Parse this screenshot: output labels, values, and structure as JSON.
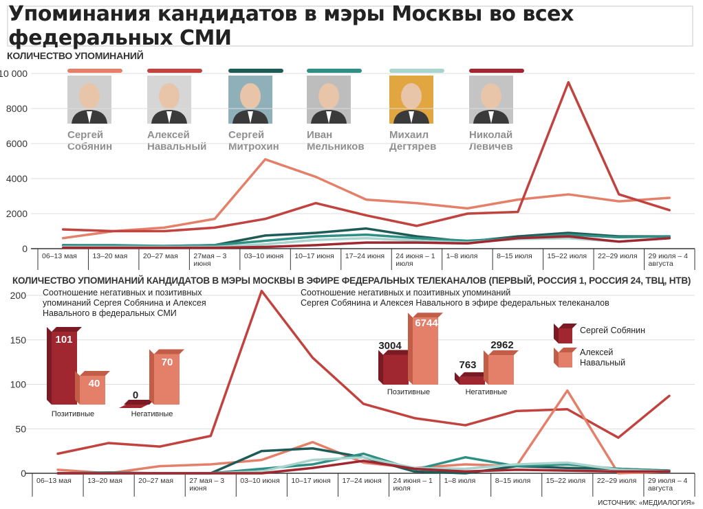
{
  "title": "Упоминания кандидатов в мэры Москвы во всех федеральных СМИ",
  "top_section_label": "КОЛИЧЕСТВО УПОМИНАНИЙ",
  "bottom_section_label": "КОЛИЧЕСТВО УПОМИНАНИЙ КАНДИДАТОВ В МЭРЫ МОСКВЫ В ЭФИРЕ ФЕДЕРАЛЬНЫХ ТЕЛЕКАНАЛОВ (ПЕРВЫЙ, РОССИЯ 1, РОССИЯ 24, ТВЦ, НТВ)",
  "candidates": [
    {
      "first": "Сергей",
      "last": "Собянин",
      "color": "#e4806a",
      "photo_bg": "#cfcfcf"
    },
    {
      "first": "Алексей",
      "last": "Навальный",
      "color": "#c0433f",
      "photo_bg": "#d6d6d6"
    },
    {
      "first": "Сергей",
      "last": "Митрохин",
      "color": "#1e5b57",
      "photo_bg": "#8fb0b8"
    },
    {
      "first": "Иван",
      "last": "Мельников",
      "color": "#2f8f84",
      "photo_bg": "#bdbdbd"
    },
    {
      "first": "Михаил",
      "last": "Дегтярев",
      "color": "#a9d3cd",
      "photo_bg": "#e1a640"
    },
    {
      "first": "Николай",
      "last": "Левичев",
      "color": "#a0262f",
      "photo_bg": "#c4c4c4"
    }
  ],
  "source": "ИСТОЧНИК: «МЕДИАЛОГИЯ»",
  "chart_data": [
    {
      "type": "line",
      "title": "КОЛИЧЕСТВО УПОМИНАНИЙ",
      "ylim": [
        0,
        10000
      ],
      "yticks": [
        0,
        2000,
        4000,
        6000,
        8000,
        10000
      ],
      "ytick_labels": [
        "0",
        "2000",
        "4000",
        "6000",
        "8000",
        "10 000"
      ],
      "categories": [
        "06–13 мая",
        "13–20 мая",
        "20–27 мая",
        "27мая – 3 июня",
        "03–10 июня",
        "10–17 июня",
        "17–24 июня",
        "24 июня – 1 июля",
        "1–8 июля",
        "8–15 июля",
        "15–22 июля",
        "22–29 июля",
        "29 июля – 4 августа"
      ],
      "category_lines": [
        [
          "06–13 мая"
        ],
        [
          "13–20 мая"
        ],
        [
          "20–27 мая"
        ],
        [
          "27мая – 3",
          "июня"
        ],
        [
          "03–10 июня"
        ],
        [
          "10–17 июня"
        ],
        [
          "17–24 июня"
        ],
        [
          "24 июня – 1",
          "июля"
        ],
        [
          "1–8 июля"
        ],
        [
          "8–15 июля"
        ],
        [
          "15–22 июля"
        ],
        [
          "22–29 июля"
        ],
        [
          "29 июля – 4",
          "августа"
        ]
      ],
      "series": [
        {
          "name": "Сергей Собянин",
          "color": "#e4806a",
          "values": [
            600,
            1000,
            1200,
            1700,
            5100,
            4100,
            2800,
            2600,
            2300,
            2800,
            3100,
            2700,
            2900
          ]
        },
        {
          "name": "Алексей Навальный",
          "color": "#c0433f",
          "values": [
            1100,
            1000,
            1000,
            1200,
            1700,
            2600,
            1900,
            1300,
            2000,
            2100,
            9500,
            3100,
            2200
          ]
        },
        {
          "name": "Сергей Митрохин",
          "color": "#1e5b57",
          "values": [
            200,
            150,
            150,
            200,
            750,
            900,
            1150,
            700,
            400,
            700,
            900,
            700,
            700
          ]
        },
        {
          "name": "Иван Мельников",
          "color": "#2f8f84",
          "values": [
            200,
            200,
            150,
            200,
            450,
            700,
            800,
            600,
            450,
            600,
            800,
            650,
            700
          ]
        },
        {
          "name": "Михаил Дегтярев",
          "color": "#a9d3cd",
          "values": [
            100,
            100,
            100,
            100,
            250,
            500,
            600,
            450,
            350,
            550,
            600,
            400,
            600
          ]
        },
        {
          "name": "Николай Левичев",
          "color": "#a0262f",
          "values": [
            50,
            50,
            50,
            50,
            100,
            200,
            350,
            350,
            300,
            600,
            700,
            400,
            600
          ]
        }
      ]
    },
    {
      "type": "line",
      "title": "КОЛИЧЕСТВО УПОМИНАНИЙ КАНДИДАТОВ В МЭРЫ МОСКВЫ В ЭФИРЕ ФЕДЕРАЛЬНЫХ ТЕЛЕКАНАЛОВ (ПЕРВЫЙ, РОССИЯ 1, РОССИЯ 24, ТВЦ, НТВ)",
      "ylim": [
        0,
        200
      ],
      "yticks": [
        0,
        50,
        100,
        150,
        200
      ],
      "ytick_labels": [
        "0",
        "50",
        "100",
        "150",
        "200"
      ],
      "categories": [
        "06–13 мая",
        "13–20 мая",
        "20–27 мая",
        "27 мая – 3 июня",
        "03–10 июня",
        "10–17 июня",
        "17–24 июня",
        "24 июня – 1 июля",
        "1–8 июля",
        "8–15 июля",
        "15–22 июля",
        "22–29 июля",
        "29 июля – 4 августа"
      ],
      "category_lines": [
        [
          "06–13 мая"
        ],
        [
          "13–20 мая"
        ],
        [
          "20–27 мая"
        ],
        [
          "27 мая – 3",
          "июня"
        ],
        [
          "03–10 июня"
        ],
        [
          "10–17 июня"
        ],
        [
          "17–24 июня"
        ],
        [
          "24 июня – 1",
          "июля"
        ],
        [
          "1–8 июля"
        ],
        [
          "8–15 июля"
        ],
        [
          "15–22 июля"
        ],
        [
          "22–29 июля"
        ],
        [
          "29 июля – 4",
          "августа"
        ]
      ],
      "series": [
        {
          "name": "Сергей Собянин",
          "color": "#c0433f",
          "values": [
            22,
            34,
            30,
            42,
            205,
            130,
            78,
            62,
            54,
            70,
            72,
            40,
            87
          ]
        },
        {
          "name": "Алексей Навальный",
          "color": "#e4806a",
          "values": [
            4,
            0,
            8,
            10,
            15,
            35,
            12,
            6,
            10,
            8,
            93,
            0,
            2
          ]
        },
        {
          "name": "Сергей Митрохин",
          "color": "#1e5b57",
          "values": [
            0,
            0,
            0,
            0,
            25,
            28,
            18,
            2,
            0,
            8,
            6,
            5,
            3
          ]
        },
        {
          "name": "Иван Мельников",
          "color": "#2f8f84",
          "values": [
            0,
            1,
            0,
            0,
            5,
            10,
            22,
            4,
            18,
            8,
            10,
            5,
            3
          ]
        },
        {
          "name": "Михаил Дегтярев",
          "color": "#a9d3cd",
          "values": [
            0,
            0,
            0,
            0,
            2,
            15,
            18,
            6,
            5,
            10,
            12,
            4,
            2
          ]
        },
        {
          "name": "Николай Левичев",
          "color": "#a0262f",
          "values": [
            0,
            0,
            0,
            0,
            0,
            6,
            14,
            5,
            2,
            4,
            3,
            2,
            2
          ]
        }
      ]
    },
    {
      "type": "bar",
      "title": "Соотношение негативных и позитивных упоминаний Сергея Собянина и Алексея Навального в федеральных СМИ",
      "title_lines": [
        "Соотношение негативных и позитивных",
        "упоминаний Сергея Собянина и Алексея",
        "Навального в федеральных СМИ"
      ],
      "categories": [
        "Позитивные",
        "Негативные"
      ],
      "series": [
        {
          "name": "Сергей Собянин",
          "color": "#a0262f",
          "values": [
            101,
            0
          ]
        },
        {
          "name": "Алексей Навальный",
          "color": "#e4806a",
          "values": [
            40,
            70
          ]
        }
      ]
    },
    {
      "type": "bar",
      "title": "Соотношение негативных и позитивных упоминаний Сергея Собянина и Алексея Навального в эфире федеральных телеканалов",
      "title_lines": [
        "Соотношение негативных и позитивных упоминаний",
        "Сергея Собянина и Алексея Навального в эфире федеральных телеканалов"
      ],
      "categories": [
        "Позитивные",
        "Негативные"
      ],
      "series": [
        {
          "name": "Сергей Собянин",
          "color": "#a0262f",
          "values": [
            3004,
            763
          ]
        },
        {
          "name": "Алексей Навальный",
          "color": "#e4806a",
          "values": [
            6744,
            2962
          ]
        }
      ],
      "legend": [
        "Сергей Собянин",
        "Алексей Навальный"
      ]
    }
  ]
}
